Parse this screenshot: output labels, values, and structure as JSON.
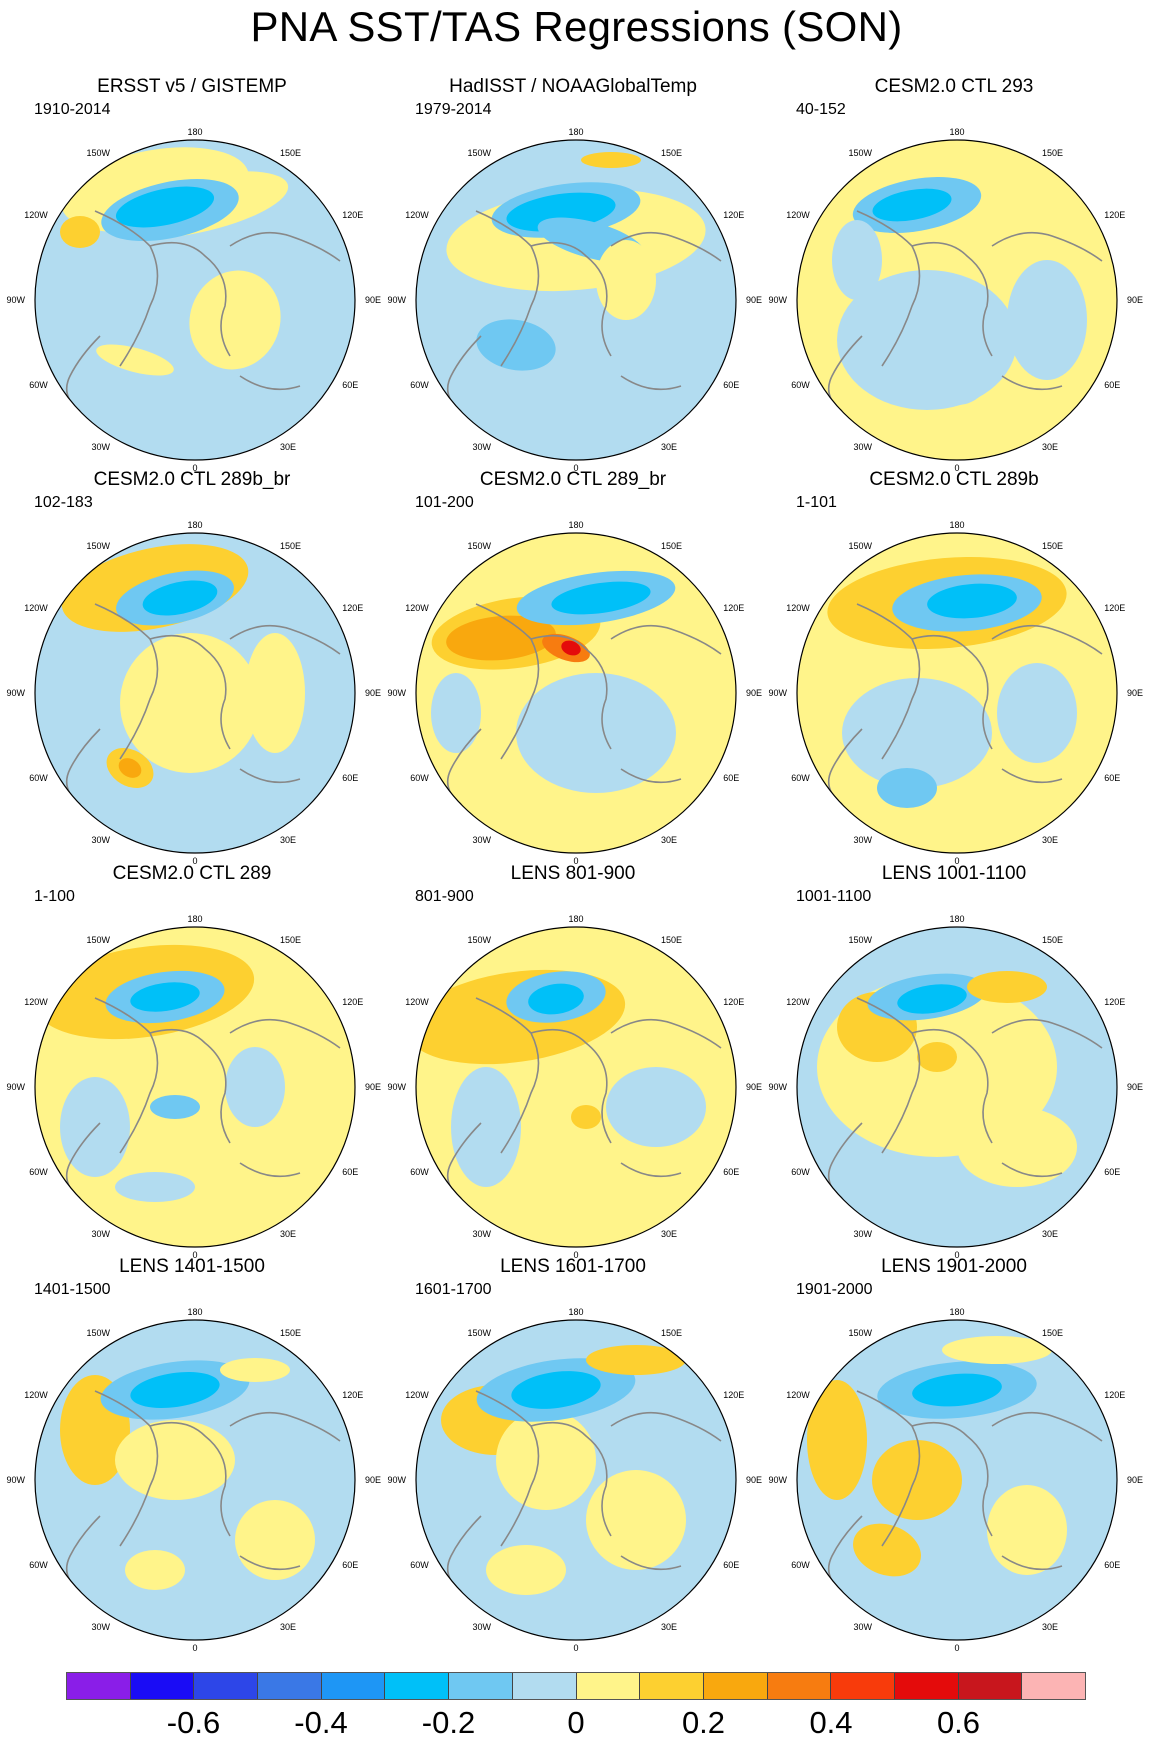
{
  "title": "PNA SST/TAS Regressions (SON)",
  "longitude_labels": {
    "deg180": "180",
    "w150": "150W",
    "e150": "150E",
    "w120": "120W",
    "e120": "120E",
    "w90": "90W",
    "e90": "90E",
    "w60": "60W",
    "e60": "60E",
    "w30": "30W",
    "e30": "30E",
    "deg0": "0"
  },
  "panels": [
    {
      "title": "ERSST v5 / GISTEMP",
      "years": "1910-2014"
    },
    {
      "title": "HadISST / NOAAGlobalTemp",
      "years": "1979-2014"
    },
    {
      "title": "CESM2.0 CTL 293",
      "years": "40-152"
    },
    {
      "title": "CESM2.0 CTL 289b_br",
      "years": "102-183"
    },
    {
      "title": "CESM2.0 CTL 289_br",
      "years": "101-200"
    },
    {
      "title": "CESM2.0 CTL 289b",
      "years": "1-101"
    },
    {
      "title": "CESM2.0 CTL 289",
      "years": "1-100"
    },
    {
      "title": "LENS 801-900",
      "years": "801-900"
    },
    {
      "title": "LENS 1001-1100",
      "years": "1001-1100"
    },
    {
      "title": "LENS 1401-1500",
      "years": "1401-1500"
    },
    {
      "title": "LENS 1601-1700",
      "years": "1601-1700"
    },
    {
      "title": "LENS 1901-2000",
      "years": "1901-2000"
    }
  ],
  "colorbar": {
    "colors": [
      "#8a1ee8",
      "#1a0cf5",
      "#2d46e8",
      "#3a78e6",
      "#1e96f5",
      "#00c0f8",
      "#6fc8f2",
      "#b2dcf0",
      "#fff48a",
      "#fdd030",
      "#f9a80e",
      "#f77c10",
      "#f83b0b",
      "#e40b0b",
      "#c8161d",
      "#fcb4b4"
    ],
    "labels": [
      "-0.6",
      "-0.4",
      "-0.2",
      "0",
      "0.2",
      "0.4",
      "0.6"
    ]
  }
}
